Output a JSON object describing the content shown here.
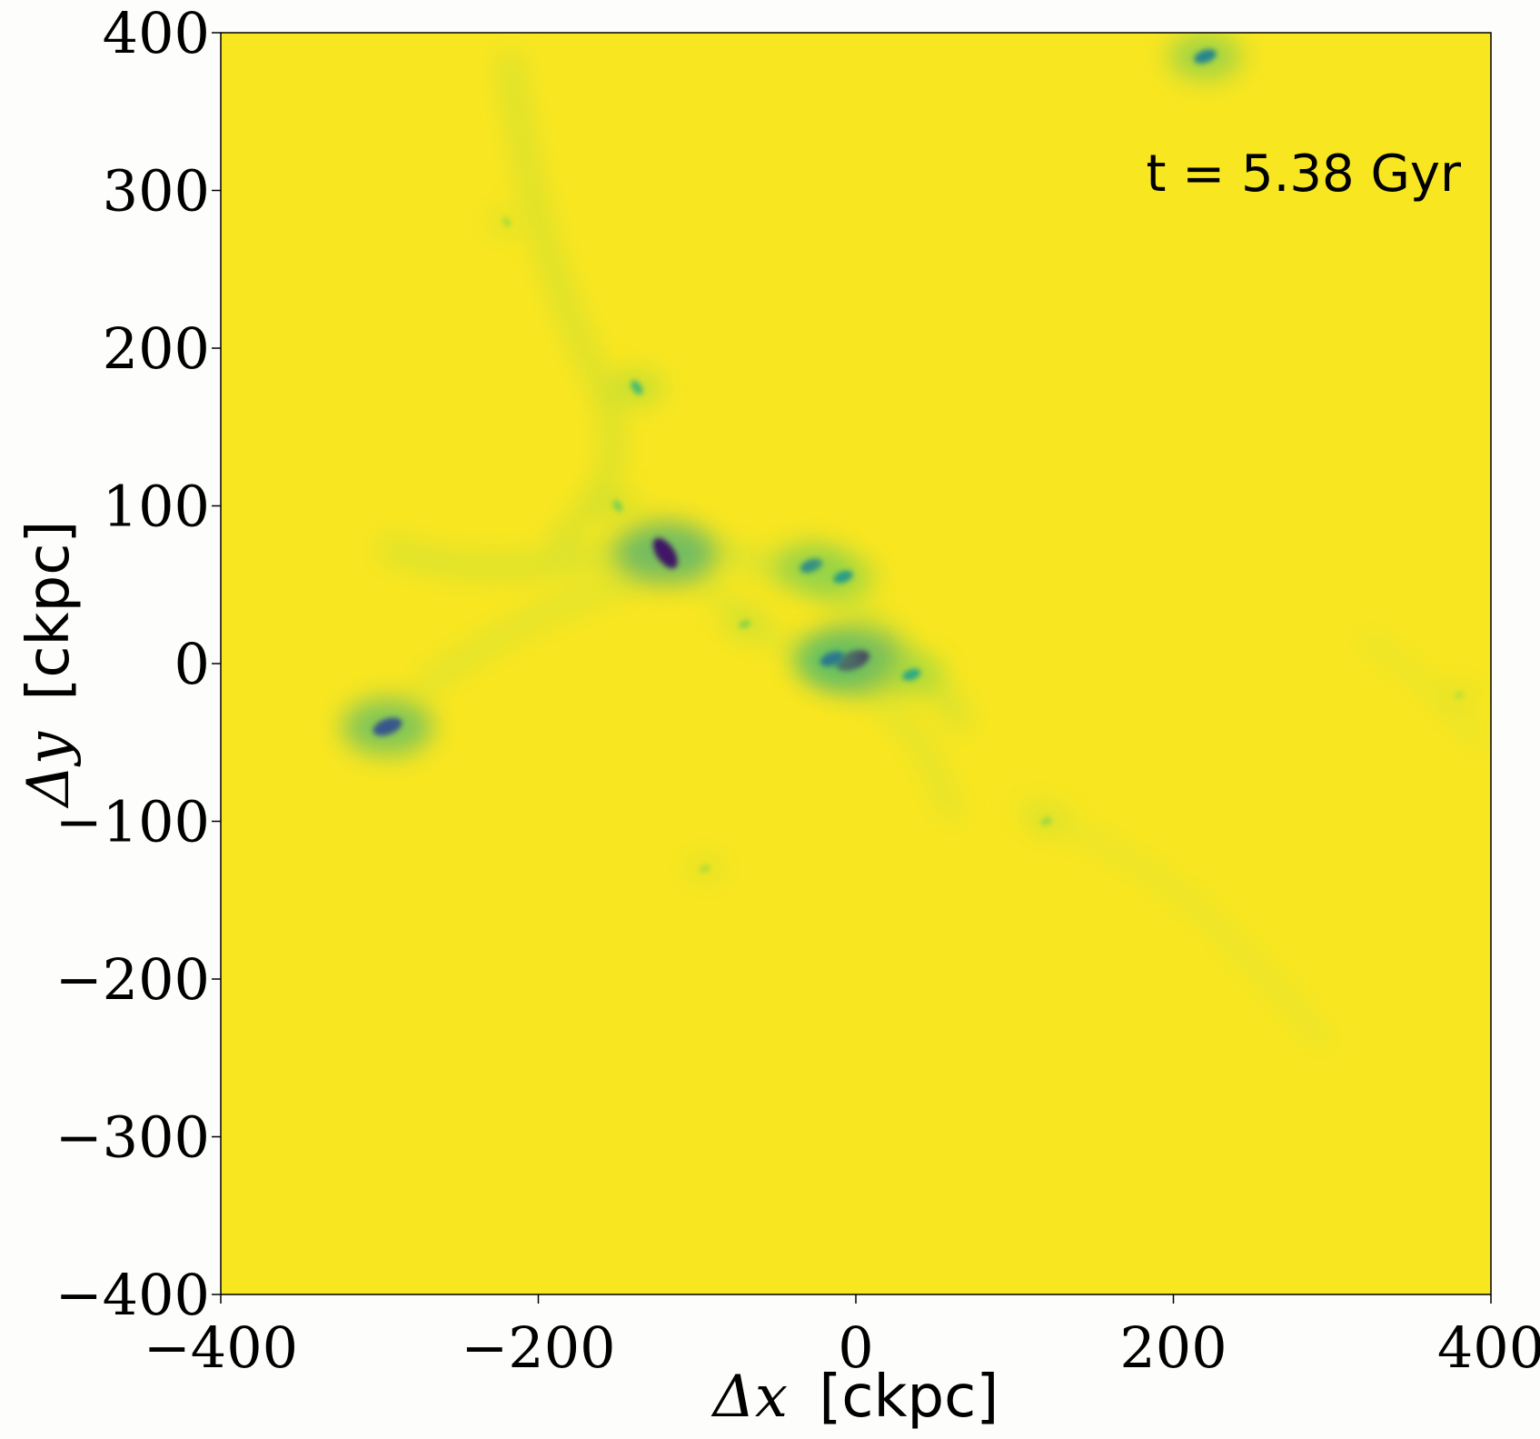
{
  "chart_data": {
    "type": "heatmap",
    "colormap": "viridis",
    "background_color": "#f8e621",
    "xlim": [
      -400,
      400
    ],
    "ylim": [
      -400,
      400
    ],
    "xticks": [
      -400,
      -200,
      0,
      200,
      400
    ],
    "yticks": [
      -400,
      -300,
      -200,
      -100,
      0,
      100,
      200,
      300,
      400
    ],
    "xtick_labels": [
      "−400",
      "−200",
      "0",
      "200",
      "400"
    ],
    "ytick_labels": [
      "−400",
      "−300",
      "−200",
      "−100",
      "0",
      "100",
      "200",
      "300",
      "400"
    ],
    "xlabel_symbol": "Δx",
    "xlabel_unit": "[ckpc]",
    "ylabel_symbol": "Δy",
    "ylabel_unit": "[ckpc]",
    "annotation": "t = 5.38 Gyr",
    "features": [
      {
        "x": -120,
        "y": 70,
        "level": 0.95
      },
      {
        "x": -2,
        "y": 2,
        "level": 0.95
      },
      {
        "x": -15,
        "y": 3,
        "level": 0.6
      },
      {
        "x": -295,
        "y": -40,
        "level": 0.8
      },
      {
        "x": 220,
        "y": 385,
        "level": 0.55
      },
      {
        "x": -28,
        "y": 62,
        "level": 0.55
      },
      {
        "x": -8,
        "y": 55,
        "level": 0.45
      },
      {
        "x": 35,
        "y": -7,
        "level": 0.4
      },
      {
        "x": -138,
        "y": 175,
        "level": 0.3
      },
      {
        "x": -150,
        "y": 100,
        "level": 0.2
      },
      {
        "x": -220,
        "y": 280,
        "level": 0.12
      },
      {
        "x": 120,
        "y": -100,
        "level": 0.15
      },
      {
        "x": 380,
        "y": -20,
        "level": 0.1
      },
      {
        "x": -95,
        "y": -130,
        "level": 0.12
      },
      {
        "x": -70,
        "y": 25,
        "level": 0.18
      }
    ]
  }
}
